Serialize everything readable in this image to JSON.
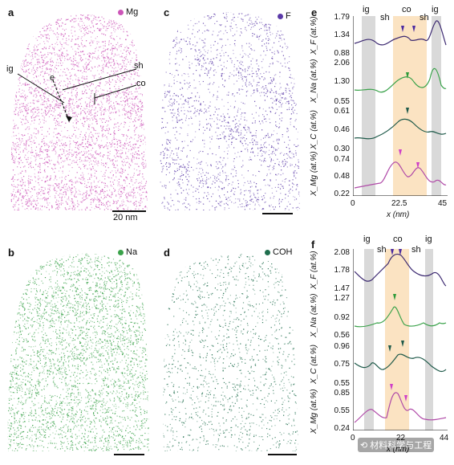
{
  "panels": {
    "a": {
      "label": "a",
      "element": "Mg",
      "color": "#cc55b8",
      "scalebar": "20 nm",
      "annotations": {
        "ig": "ig",
        "sh": "sh",
        "co": "co",
        "e": "e"
      }
    },
    "b": {
      "label": "b",
      "element": "Na",
      "color": "#3aa24a"
    },
    "c": {
      "label": "c",
      "element": "F",
      "color": "#5b3aa8"
    },
    "d": {
      "label": "d",
      "element": "COH",
      "color": "#1f6e4d"
    }
  },
  "profile_e": {
    "label": "e",
    "regions": {
      "ig_left": "ig",
      "sh_left": "sh",
      "co": "co",
      "sh_right": "sh",
      "ig_right": "ig"
    },
    "rows": [
      {
        "ylabel": "X_F (at.%)",
        "ticks": [
          "1.79",
          "1.34",
          "0.88"
        ],
        "color": "#3b2870"
      },
      {
        "ylabel": "X_Na (at.%)",
        "ticks": [
          "2.06",
          "1.30",
          "0.55"
        ],
        "color": "#3aa24a"
      },
      {
        "ylabel": "X_C (at.%)",
        "ticks": [
          "0.61",
          "0.46",
          "0.30"
        ],
        "color": "#1f5a4a"
      },
      {
        "ylabel": "X_Mg (at.%)",
        "ticks": [
          "0.74",
          "0.48",
          "0.22"
        ],
        "color": "#b04aa8"
      }
    ],
    "xticks": [
      "0",
      "22.5",
      "45"
    ],
    "xlabel": "x (nm)"
  },
  "profile_f": {
    "label": "f",
    "regions": {
      "ig_left": "ig",
      "sh_left": "sh",
      "co": "co",
      "sh_right": "sh",
      "ig_right": "ig"
    },
    "rows": [
      {
        "ylabel": "X_F (at.%)",
        "ticks": [
          "2.08",
          "1.78",
          "1.47"
        ],
        "color": "#3b2870"
      },
      {
        "ylabel": "X_Na (at.%)",
        "ticks": [
          "1.27",
          "0.92",
          "0.56"
        ],
        "color": "#3aa24a"
      },
      {
        "ylabel": "X_C (at.%)",
        "ticks": [
          "0.96",
          "0.75",
          "0.55"
        ],
        "color": "#1f5a4a"
      },
      {
        "ylabel": "X_Mg (at.%)",
        "ticks": [
          "0.85",
          "0.55",
          "0.24"
        ],
        "color": "#b04aa8"
      }
    ],
    "xticks": [
      "0",
      "22",
      "44"
    ],
    "xlabel": "x (nm)"
  },
  "watermark": "材料科学与工程"
}
